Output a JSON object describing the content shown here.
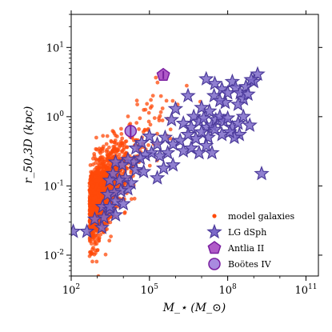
{
  "chart_data": {
    "type": "scatter",
    "xscale": "log",
    "yscale": "log",
    "xlim": [
      100,
      300000000000.0
    ],
    "ylim": [
      0.005,
      30
    ],
    "x_tick_values": [
      100,
      100000,
      100000000,
      100000000000
    ],
    "x_tick_labels": [
      "10^2",
      "10^5",
      "10^8",
      "10^11"
    ],
    "y_tick_values": [
      0.01,
      0.1,
      1,
      10
    ],
    "y_tick_labels": [
      "10^-2",
      "10^-1",
      "10^0",
      "10^1"
    ],
    "xlabel": "M_⋆ (M_⊙)",
    "ylabel": "r_50,3D (kpc)",
    "grid": false,
    "legend_position": "bottom-right",
    "colors": {
      "model": "#ff4a0a",
      "dsph_fill": "#7b68c8",
      "dsph_edge": "#4b3a9a",
      "antlia_fill": "#b05ac8",
      "antlia_edge": "#7a1fa0",
      "bootes_fill": "#a98be0",
      "bootes_edge": "#7a1fa0"
    },
    "series": [
      {
        "name": "model galaxies",
        "marker": "dot",
        "cloud": {
          "count": 1500,
          "x_log_center": 2.7,
          "x_log_spread": 0.6,
          "x_log_min": 2.0,
          "x_log_max": 9.6,
          "slope": 0.5,
          "intercept": -2.7,
          "y_log_scatter": 0.28
        }
      },
      {
        "name": "LG dSph",
        "marker": "star",
        "points": [
          [
            32000000.0,
            3.0
          ],
          [
            15000000.0,
            3.5
          ],
          [
            60000000.0,
            2.5
          ],
          [
            150000000.0,
            3.2
          ],
          [
            200000000.0,
            2.6
          ],
          [
            500000000.0,
            2.7
          ],
          [
            1000000000.0,
            3.2
          ],
          [
            1400000000.0,
            4.1
          ],
          [
            800000000.0,
            3.4
          ],
          [
            30000000.0,
            2.0
          ],
          [
            100000000.0,
            2.2
          ],
          [
            300000000.0,
            2.2
          ],
          [
            400000000.0,
            1.8
          ],
          [
            250000000.0,
            1.5
          ],
          [
            600000000.0,
            2.1
          ],
          [
            80000000.0,
            1.6
          ],
          [
            50000000.0,
            1.7
          ],
          [
            20000000.0,
            1.2
          ],
          [
            10000000.0,
            1.35
          ],
          [
            3000000.0,
            2.0
          ],
          [
            1000000.0,
            1.3
          ],
          [
            700000.0,
            0.9
          ],
          [
            2000000.0,
            0.8
          ],
          [
            5000000.0,
            1.0
          ],
          [
            4000000.0,
            0.7
          ],
          [
            8000000.0,
            0.85
          ],
          [
            12000000.0,
            0.95
          ],
          [
            16000000.0,
            0.7
          ],
          [
            25000000.0,
            0.75
          ],
          [
            35000000.0,
            0.9
          ],
          [
            50000000.0,
            1.0
          ],
          [
            70000000.0,
            0.85
          ],
          [
            100000000.0,
            0.95
          ],
          [
            150000000.0,
            0.7
          ],
          [
            250000000.0,
            0.8
          ],
          [
            400000000.0,
            1.0
          ],
          [
            700000000.0,
            0.75
          ],
          [
            280000000.0,
            0.55
          ],
          [
            180000000.0,
            0.5
          ],
          [
            120000000.0,
            0.6
          ],
          [
            60000000.0,
            0.55
          ],
          [
            32000000.0,
            0.65
          ],
          [
            18000000.0,
            0.5
          ],
          [
            10000000.0,
            0.6
          ],
          [
            6000000.0,
            0.48
          ],
          [
            3000000.0,
            0.55
          ],
          [
            1500000.0,
            0.45
          ],
          [
            800000.0,
            0.4
          ],
          [
            400000.0,
            0.5
          ],
          [
            200000.0,
            0.4
          ],
          [
            100000.0,
            0.52
          ],
          [
            50000.0,
            0.42
          ],
          [
            30000.0,
            0.35
          ],
          [
            2000000.0,
            0.32
          ],
          [
            4000000.0,
            0.35
          ],
          [
            8000000.0,
            0.3
          ],
          [
            15000000.0,
            0.38
          ],
          [
            25000000.0,
            0.3
          ],
          [
            500000.0,
            0.3
          ],
          [
            250000.0,
            0.27
          ],
          [
            120000.0,
            0.3
          ],
          [
            70000.0,
            0.28
          ],
          [
            45000.0,
            0.25
          ],
          [
            25000.0,
            0.22
          ],
          [
            15000.0,
            0.24
          ],
          [
            9000.0,
            0.2
          ],
          [
            5000.0,
            0.22
          ],
          [
            30000.0,
            0.17
          ],
          [
            60000.0,
            0.16
          ],
          [
            12000.0,
            0.13
          ],
          [
            7000.0,
            0.12
          ],
          [
            4000.0,
            0.15
          ],
          [
            3000.0,
            0.12
          ],
          [
            20000.0,
            0.11
          ],
          [
            15000.0,
            0.09
          ],
          [
            8000.0,
            0.085
          ],
          [
            4500.0,
            0.08
          ],
          [
            2500.0,
            0.075
          ],
          [
            5000.0,
            0.06
          ],
          [
            10000.0,
            0.055
          ],
          [
            1600.0,
            0.05
          ],
          [
            3000.0,
            0.045
          ],
          [
            5000.0,
            0.038
          ],
          [
            1800.0,
            0.035
          ],
          [
            800,
            0.033
          ],
          [
            1500.0,
            0.025
          ],
          [
            400,
            0.022
          ],
          [
            120,
            0.022
          ],
          [
            3000.0,
            0.05
          ],
          [
            200000.0,
            0.13
          ],
          [
            350000.0,
            0.18
          ],
          [
            800000.0,
            0.2
          ],
          [
            2000000000.0,
            0.15
          ]
        ]
      },
      {
        "name": "Antlia II",
        "marker": "pentagon",
        "points": [
          [
            340000.0,
            4.0
          ]
        ]
      },
      {
        "name": "Boötes IV",
        "marker": "circle",
        "points": [
          [
            19000.0,
            0.62
          ]
        ]
      }
    ]
  }
}
